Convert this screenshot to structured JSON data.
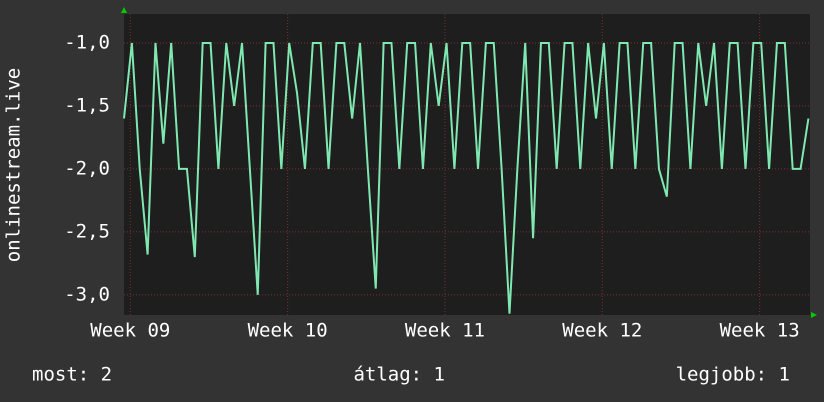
{
  "chart_data": {
    "type": "line",
    "ylabel": "onlinestream.live",
    "x": [
      8.96,
      9.01,
      9.06,
      9.11,
      9.16,
      9.21,
      9.26,
      9.31,
      9.36,
      9.41,
      9.46,
      9.51,
      9.56,
      9.61,
      9.66,
      9.71,
      9.76,
      9.81,
      9.86,
      9.91,
      9.96,
      10.01,
      10.06,
      10.11,
      10.16,
      10.21,
      10.26,
      10.31,
      10.36,
      10.41,
      10.46,
      10.51,
      10.56,
      10.61,
      10.66,
      10.71,
      10.76,
      10.81,
      10.86,
      10.91,
      10.96,
      11.01,
      11.06,
      11.11,
      11.16,
      11.21,
      11.26,
      11.31,
      11.36,
      11.41,
      11.46,
      11.51,
      11.56,
      11.61,
      11.66,
      11.71,
      11.76,
      11.81,
      11.86,
      11.91,
      11.96,
      12.01,
      12.06,
      12.11,
      12.16,
      12.21,
      12.26,
      12.31,
      12.36,
      12.41,
      12.46,
      12.51,
      12.56,
      12.61,
      12.66,
      12.71,
      12.76,
      12.81,
      12.86,
      12.91,
      12.96,
      13.01,
      13.06,
      13.11,
      13.16,
      13.21,
      13.26,
      13.31
    ],
    "series": [
      {
        "color": "#7fe8b0",
        "values": [
          -1.6,
          -1,
          -2,
          -2.68,
          -1,
          -1.8,
          -1,
          -2,
          -2,
          -2.7,
          -1,
          -1,
          -2,
          -1,
          -1.5,
          -1,
          -2,
          -3.0,
          -1,
          -1,
          -2,
          -1,
          -1.4,
          -2,
          -1,
          -1,
          -2,
          -1,
          -1,
          -1.6,
          -1,
          -2,
          -2.95,
          -1,
          -1,
          -2,
          -1,
          -1,
          -2,
          -1,
          -1.5,
          -1,
          -2,
          -1,
          -1,
          -2,
          -1,
          -1,
          -2,
          -3.15,
          -2,
          -1,
          -2.55,
          -1,
          -1,
          -2,
          -1,
          -1,
          -2,
          -1,
          -1.6,
          -1,
          -2,
          -1,
          -1,
          -2,
          -1,
          -1,
          -2,
          -2.22,
          -1,
          -1,
          -2,
          -1,
          -1.5,
          -1,
          -2,
          -1,
          -1,
          -2,
          -1,
          -1,
          -2,
          -1,
          -1,
          -2,
          -2,
          -1.6
        ]
      }
    ],
    "xlim": [
      8.96,
      13.32
    ],
    "ylim": [
      -3.16,
      -0.77
    ],
    "xticks": [
      {
        "value": 9,
        "label": "Week 09"
      },
      {
        "value": 10,
        "label": "Week 10"
      },
      {
        "value": 11,
        "label": "Week 11"
      },
      {
        "value": 12,
        "label": "Week 12"
      },
      {
        "value": 13,
        "label": "Week 13"
      }
    ],
    "yticks": [
      {
        "value": -1,
        "label": "-1,0"
      },
      {
        "value": -1.5,
        "label": "-1,5"
      },
      {
        "value": -2,
        "label": "-2,0"
      },
      {
        "value": -2.5,
        "label": "-2,5"
      },
      {
        "value": -3,
        "label": "-3,0"
      }
    ],
    "grid": true,
    "stats": [
      "most: 2",
      "átlag: 1",
      "legjobb: 1"
    ]
  }
}
